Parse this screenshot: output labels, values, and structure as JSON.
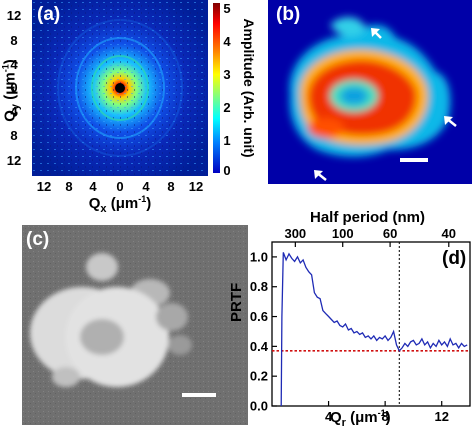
{
  "panels": {
    "a": {
      "label": "(a)",
      "x_ticks": [
        "12",
        "8",
        "4",
        "0",
        "4",
        "8",
        "12"
      ],
      "y_ticks": [
        "12",
        "8",
        "4",
        "0",
        "4",
        "8",
        "12"
      ],
      "x_label": "Q",
      "x_sub": "x",
      "x_unit": "(μm",
      "x_unit_exp": "-1",
      "x_unit_close": ")",
      "y_label": "Q",
      "y_sub": "y",
      "y_unit": "(μm",
      "y_unit_exp": "-1",
      "y_unit_close": ")",
      "colorbar_ticks": [
        "5",
        "4",
        "3",
        "2",
        "1",
        "0"
      ],
      "colorbar_label": "Amplitude (Arb. unit)"
    },
    "b": {
      "label": "(b)"
    },
    "c": {
      "label": "(c)"
    },
    "d": {
      "label": "(d)",
      "top_axis_title": "Half period (nm)",
      "top_ticks": [
        "300",
        "100",
        "60",
        "40"
      ],
      "y_label": "PRTF",
      "x_label": "Q",
      "x_sub": "r",
      "x_unit": "(μm",
      "x_unit_exp": "-1",
      "x_unit_close": ")"
    }
  },
  "chart_data": {
    "type": "line",
    "title": "",
    "xlabel": "Qr (μm-1)",
    "ylabel": "PRTF",
    "top_xlabel": "Half period (nm)",
    "xlim": [
      0,
      14
    ],
    "ylim": [
      0,
      1.1
    ],
    "x_ticks": [
      4,
      8,
      12
    ],
    "y_ticks": [
      0,
      0.2,
      0.4,
      0.6,
      0.8,
      1.0
    ],
    "top_ticks": [
      {
        "label": "300",
        "q": 1.65
      },
      {
        "label": "100",
        "q": 5.0
      },
      {
        "label": "60",
        "q": 8.35
      },
      {
        "label": "40",
        "q": 12.5
      }
    ],
    "threshold": 0.37,
    "cutoff_q": 9.0,
    "colors": {
      "curve": "#1f2bb5",
      "threshold": "#d01010",
      "cutoff": "#000000"
    },
    "series": [
      {
        "x": [
          0.65,
          0.7,
          0.8,
          1.0,
          1.2,
          1.4,
          1.6,
          1.8,
          2.0,
          2.2,
          2.4,
          2.6,
          2.8,
          3.0,
          3.2,
          3.4,
          3.6,
          3.8,
          4.0,
          4.2,
          4.4,
          4.6,
          4.8,
          5.0,
          5.2,
          5.4,
          5.6,
          5.8,
          6.0,
          6.2,
          6.4,
          6.6,
          6.8,
          7.0,
          7.2,
          7.4,
          7.6,
          7.8,
          8.0,
          8.2,
          8.4,
          8.6,
          8.8,
          9.0,
          9.2,
          9.4,
          9.6,
          9.8,
          10.0,
          10.2,
          10.4,
          10.6,
          10.8,
          11.0,
          11.2,
          11.4,
          11.6,
          11.8,
          12.0,
          12.2,
          12.4,
          12.6,
          12.8,
          13.0,
          13.2,
          13.4,
          13.6,
          13.8
        ],
        "y": [
          0.0,
          0.6,
          1.03,
          0.98,
          1.02,
          0.99,
          0.97,
          1.0,
          0.96,
          0.98,
          0.93,
          0.9,
          0.88,
          0.76,
          0.73,
          0.72,
          0.64,
          0.62,
          0.6,
          0.58,
          0.56,
          0.57,
          0.54,
          0.53,
          0.55,
          0.51,
          0.52,
          0.49,
          0.5,
          0.48,
          0.49,
          0.46,
          0.47,
          0.45,
          0.47,
          0.44,
          0.46,
          0.45,
          0.47,
          0.44,
          0.46,
          0.5,
          0.41,
          0.37,
          0.39,
          0.42,
          0.4,
          0.43,
          0.44,
          0.41,
          0.42,
          0.45,
          0.41,
          0.43,
          0.39,
          0.42,
          0.4,
          0.44,
          0.41,
          0.43,
          0.4,
          0.45,
          0.41,
          0.42,
          0.39,
          0.42,
          0.4,
          0.41
        ]
      }
    ]
  }
}
